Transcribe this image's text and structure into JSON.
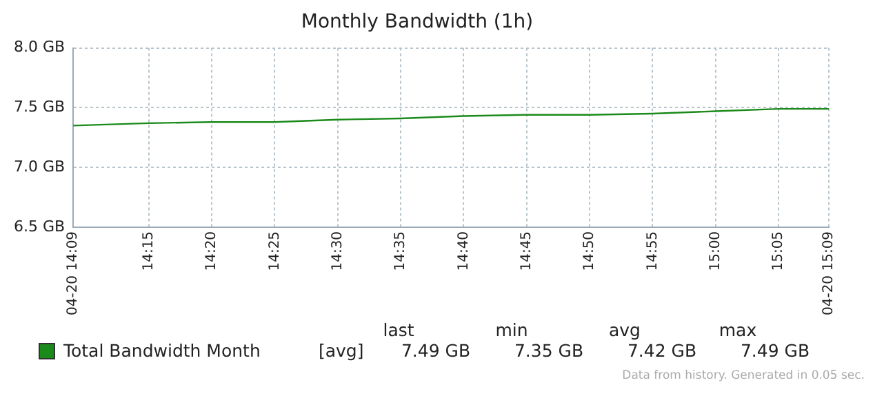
{
  "chart_data": {
    "type": "line",
    "title": "Monthly Bandwidth (1h)",
    "x": [
      14.15,
      14.25,
      14.3333,
      14.4167,
      14.5,
      14.5833,
      14.6667,
      14.75,
      14.8333,
      14.9167,
      15.0,
      15.0833,
      15.15
    ],
    "series": [
      {
        "name": "Total Bandwidth Month",
        "color": "#1a8a1a",
        "values": [
          7.35,
          7.37,
          7.38,
          7.38,
          7.4,
          7.41,
          7.43,
          7.44,
          7.44,
          7.45,
          7.47,
          7.49,
          7.49
        ]
      }
    ],
    "xlim": [
      14.15,
      15.15
    ],
    "xticks": [
      {
        "value": 14.15,
        "label": "04-20 14:09"
      },
      {
        "value": 14.25,
        "label": "14:15"
      },
      {
        "value": 14.3333,
        "label": "14:20"
      },
      {
        "value": 14.4167,
        "label": "14:25"
      },
      {
        "value": 14.5,
        "label": "14:30"
      },
      {
        "value": 14.5833,
        "label": "14:35"
      },
      {
        "value": 14.6667,
        "label": "14:40"
      },
      {
        "value": 14.75,
        "label": "14:45"
      },
      {
        "value": 14.8333,
        "label": "14:50"
      },
      {
        "value": 14.9167,
        "label": "14:55"
      },
      {
        "value": 15.0,
        "label": "15:00"
      },
      {
        "value": 15.0833,
        "label": "15:05"
      },
      {
        "value": 15.15,
        "label": "04-20 15:09"
      }
    ],
    "ylim": [
      6.5,
      8.0
    ],
    "yticks": [
      {
        "value": 6.5,
        "label": "6.5 GB"
      },
      {
        "value": 7.0,
        "label": "7.0 GB"
      },
      {
        "value": 7.5,
        "label": "7.5 GB"
      },
      {
        "value": 8.0,
        "label": "8.0 GB"
      }
    ],
    "grid": true,
    "legend": "bottom",
    "marker": "none",
    "line_style": "solid",
    "annotations": [
      "[avg]",
      "last",
      "min",
      "avg",
      "max",
      "7.49 GB",
      "7.35 GB",
      "7.42 GB",
      "7.49 GB",
      "Data from history. Generated in 0.05 sec."
    ]
  }
}
